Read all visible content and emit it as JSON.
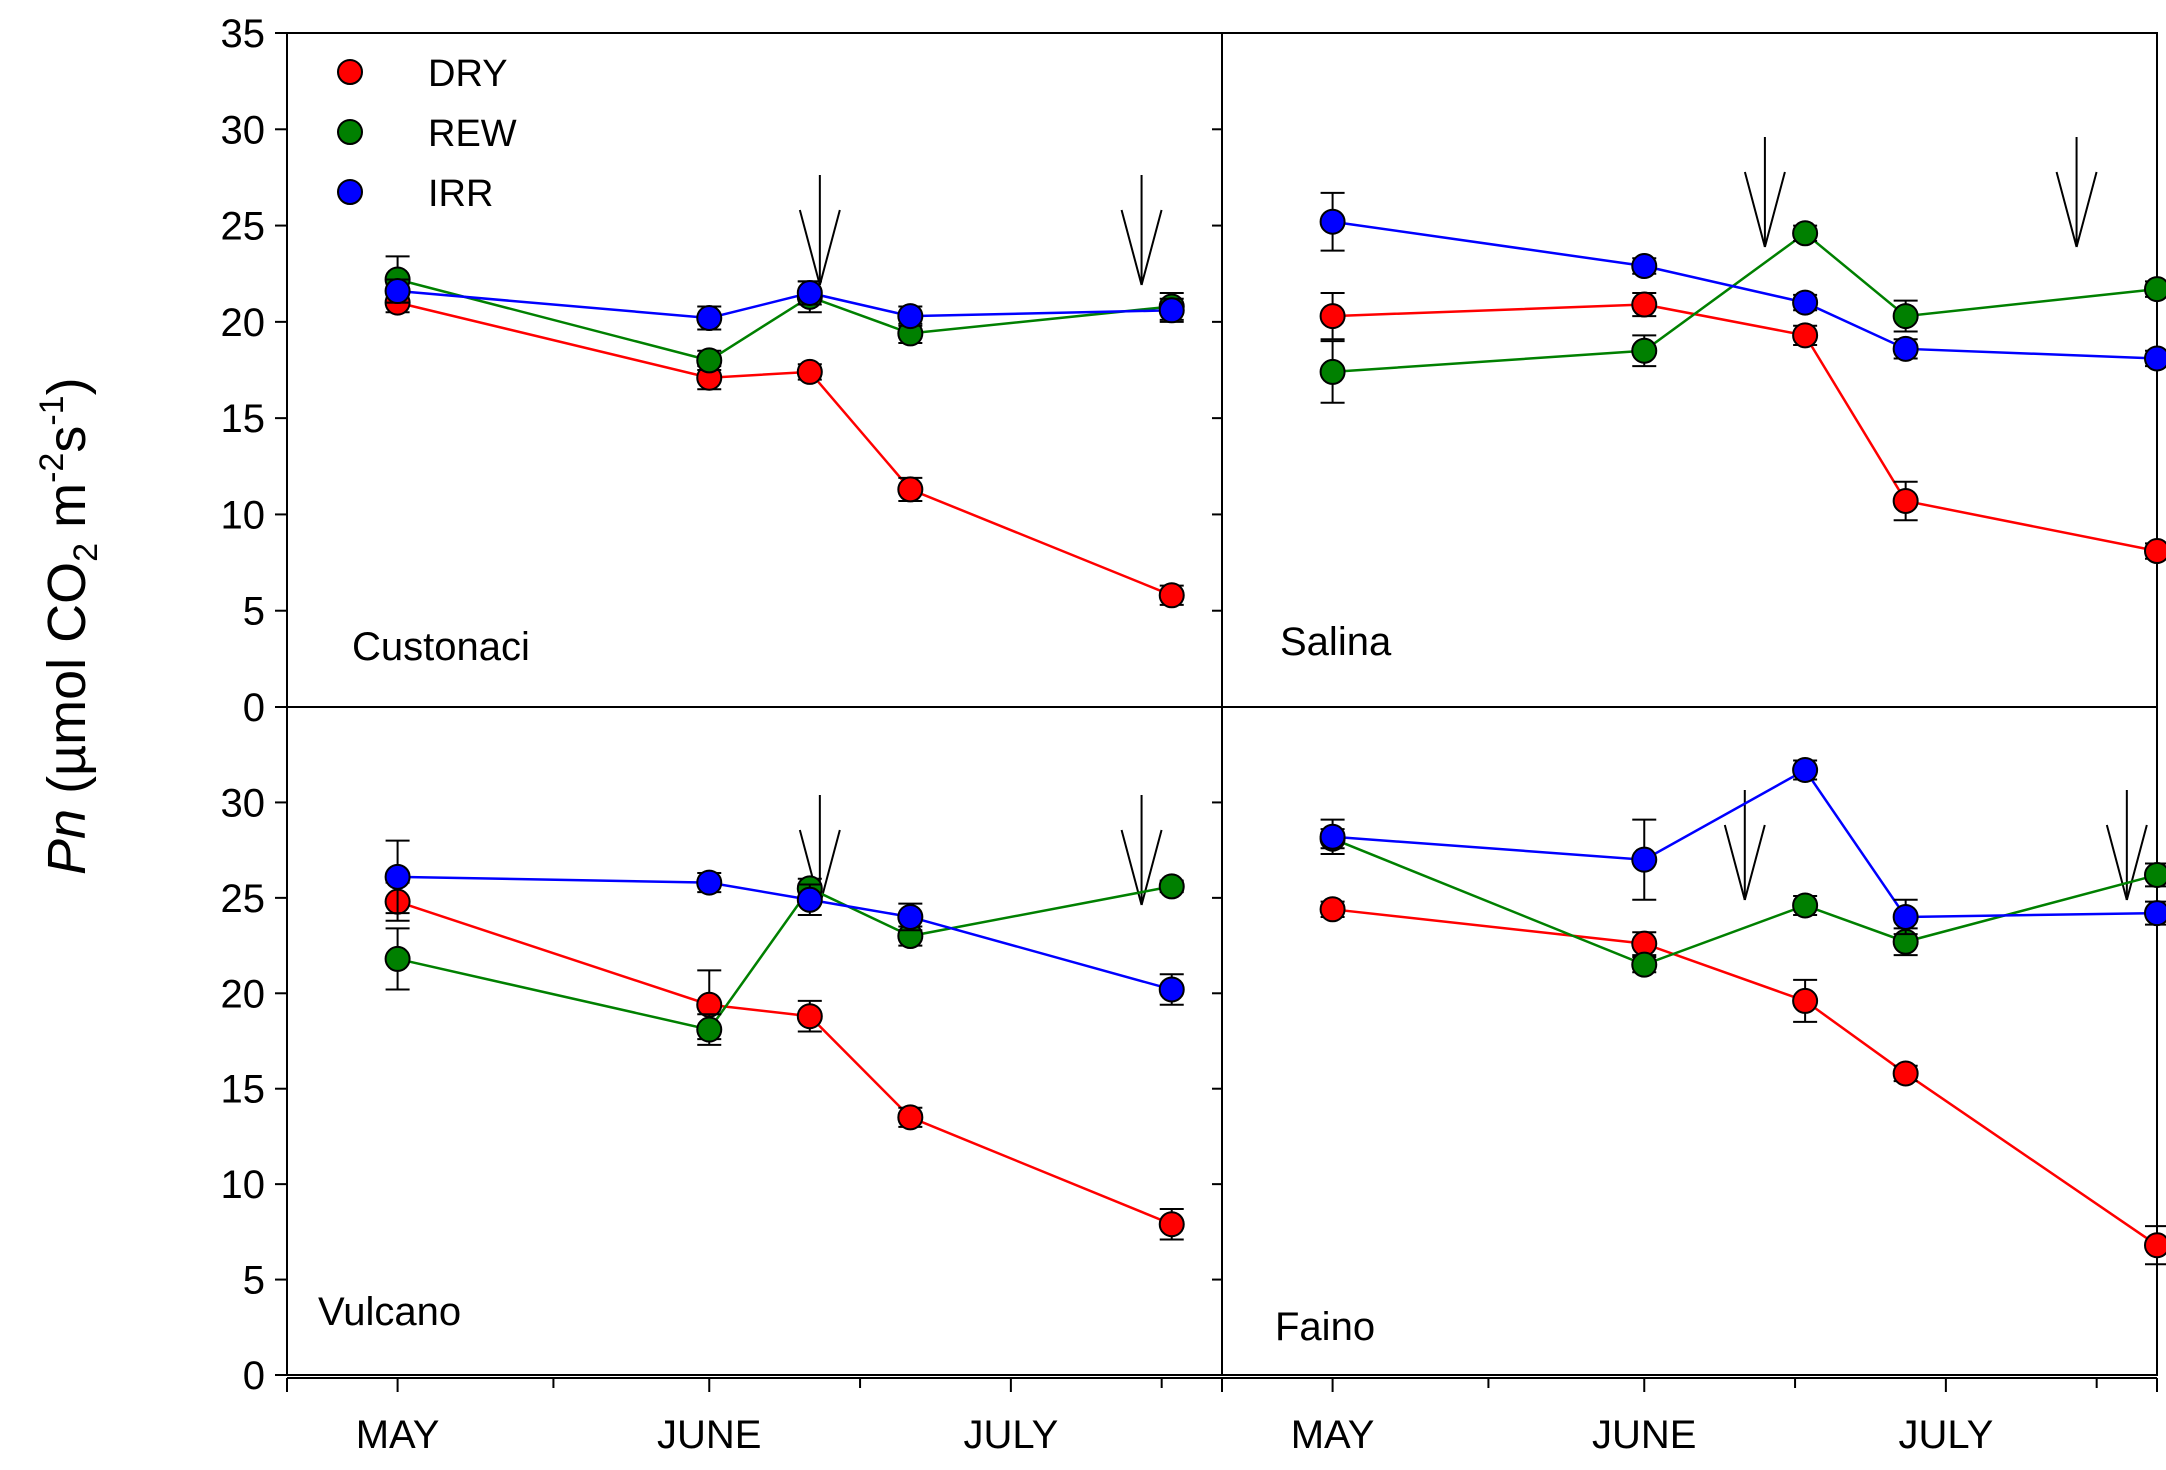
{
  "chart_data": {
    "type": "scatter",
    "ylabel_parts": {
      "italic": "Pn",
      "pre": " (µmol CO",
      "sub": "2",
      "mid1": " m",
      "sup1": "-2",
      "mid2": "s",
      "sup2": "-1",
      "post": ")"
    },
    "x_unit": "days since May 1",
    "xlim": [
      -11,
      82
    ],
    "ylim": [
      0,
      35
    ],
    "yticks": [
      0,
      5,
      10,
      15,
      20,
      25,
      30,
      35
    ],
    "months": [
      {
        "label": "MAY",
        "day": 0
      },
      {
        "label": "JUNE",
        "day": 31
      },
      {
        "label": "JULY",
        "day": 61
      }
    ],
    "colors": {
      "DRY": "#ff0000",
      "REW": "#008000",
      "IRR": "#0000ff"
    },
    "legend": [
      {
        "name": "DRY",
        "color": "#ff0000"
      },
      {
        "name": "REW",
        "color": "#008000"
      },
      {
        "name": "IRR",
        "color": "#0000ff"
      }
    ],
    "panels": [
      {
        "name": "Custonaci",
        "arrows": [
          42,
          74
        ],
        "series": [
          {
            "name": "DRY",
            "x": [
              0,
              31,
              41,
              51,
              77
            ],
            "y": [
              21.0,
              17.1,
              17.4,
              11.3,
              5.8
            ],
            "err": [
              0.5,
              0.6,
              0.4,
              0.6,
              0.5
            ]
          },
          {
            "name": "REW",
            "x": [
              0,
              31,
              41,
              51,
              77
            ],
            "y": [
              22.2,
              18.0,
              21.3,
              19.4,
              20.8
            ],
            "err": [
              1.2,
              0.5,
              0.8,
              0.5,
              0.7
            ]
          },
          {
            "name": "IRR",
            "x": [
              0,
              31,
              41,
              51,
              77
            ],
            "y": [
              21.6,
              20.2,
              21.5,
              20.3,
              20.6
            ],
            "err": [
              0.6,
              0.6,
              0.6,
              0.5,
              0.6
            ]
          }
        ]
      },
      {
        "name": "Salina",
        "arrows": [
          43,
          74
        ],
        "series": [
          {
            "name": "DRY",
            "x": [
              0,
              31,
              47,
              57,
              82
            ],
            "y": [
              20.3,
              20.9,
              19.3,
              10.7,
              8.1
            ],
            "err": [
              1.2,
              0.6,
              0.5,
              1.0,
              0.4
            ]
          },
          {
            "name": "REW",
            "x": [
              0,
              31,
              47,
              57,
              82
            ],
            "y": [
              17.4,
              18.5,
              24.6,
              20.3,
              21.7
            ],
            "err": [
              1.6,
              0.8,
              0.4,
              0.8,
              0.4
            ]
          },
          {
            "name": "IRR",
            "x": [
              0,
              31,
              47,
              57,
              82
            ],
            "y": [
              25.2,
              22.9,
              21.0,
              18.6,
              18.1
            ],
            "err": [
              1.5,
              0.4,
              0.4,
              0.5,
              0.4
            ]
          }
        ]
      },
      {
        "name": "Vulcano",
        "arrows": [
          42,
          74
        ],
        "series": [
          {
            "name": "DRY",
            "x": [
              0,
              31,
              41,
              51,
              77
            ],
            "y": [
              24.8,
              19.4,
              18.8,
              13.5,
              7.9
            ],
            "err": [
              1.0,
              1.8,
              0.8,
              0.5,
              0.8
            ]
          },
          {
            "name": "REW",
            "x": [
              0,
              31,
              41,
              51,
              77
            ],
            "y": [
              21.8,
              18.1,
              25.5,
              23.0,
              25.6
            ],
            "err": [
              1.6,
              0.8,
              0.5,
              0.5,
              0.3
            ]
          },
          {
            "name": "IRR",
            "x": [
              0,
              31,
              41,
              51,
              77
            ],
            "y": [
              26.1,
              25.8,
              24.9,
              24.0,
              20.2
            ],
            "err": [
              1.9,
              0.5,
              0.8,
              0.7,
              0.8
            ]
          }
        ]
      },
      {
        "name": "Faino",
        "arrows": [
          41,
          79
        ],
        "series": [
          {
            "name": "DRY",
            "x": [
              0,
              31,
              47,
              57,
              82
            ],
            "y": [
              24.4,
              22.6,
              19.6,
              15.8,
              6.8
            ],
            "err": [
              0.4,
              0.6,
              1.1,
              0.4,
              1.0
            ]
          },
          {
            "name": "REW",
            "x": [
              0,
              31,
              47,
              57,
              82
            ],
            "y": [
              28.1,
              21.5,
              24.6,
              22.7,
              26.2
            ],
            "err": [
              0.5,
              0.4,
              0.5,
              0.7,
              0.6
            ]
          },
          {
            "name": "IRR",
            "x": [
              0,
              31,
              47,
              57,
              82
            ],
            "y": [
              28.2,
              27.0,
              31.7,
              24.0,
              24.2
            ],
            "err": [
              0.9,
              2.1,
              0.5,
              0.9,
              0.6
            ]
          }
        ]
      }
    ]
  }
}
